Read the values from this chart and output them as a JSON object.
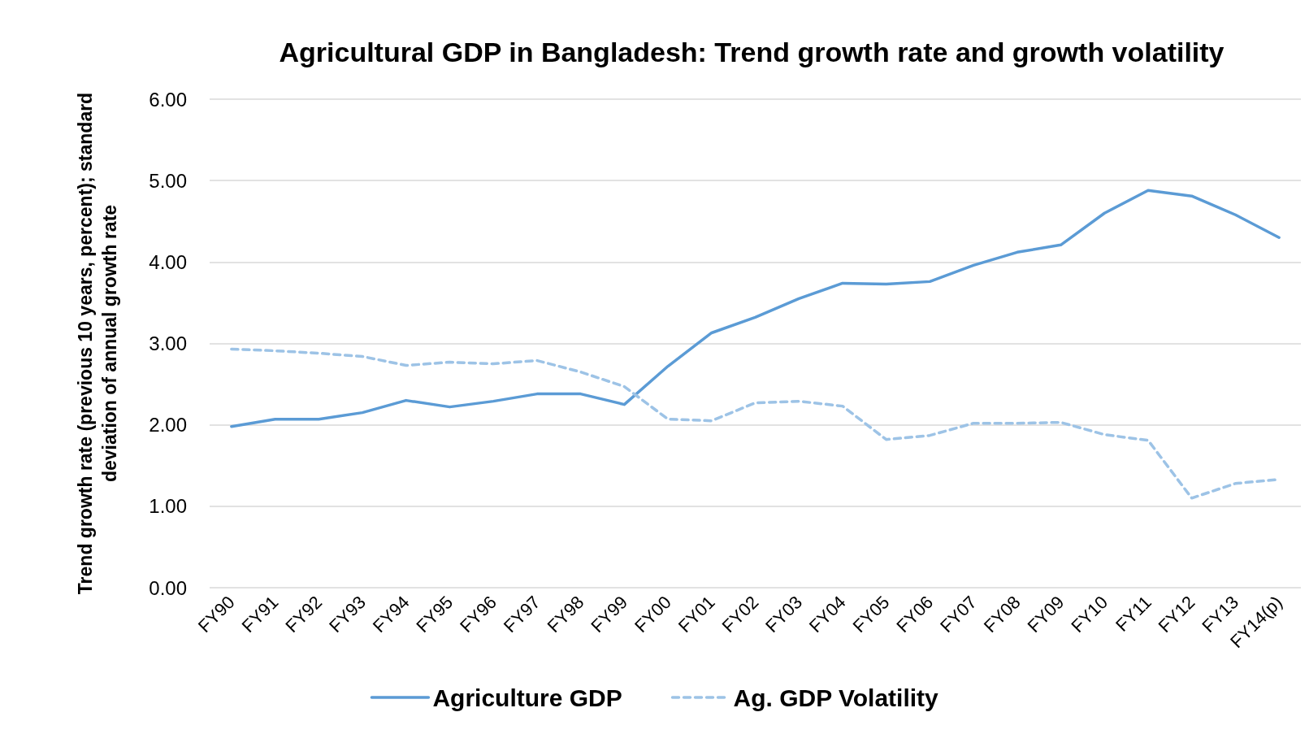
{
  "chart_data": {
    "type": "line",
    "title": "Agricultural GDP in Bangladesh: Trend growth rate and growth volatility",
    "ylabel": "Trend growth rate (previous 10 years, percent); standard deviation of annual growth rate",
    "categories": [
      "FY90",
      "FY91",
      "FY92",
      "FY93",
      "FY94",
      "FY95",
      "FY96",
      "FY97",
      "FY98",
      "FY99",
      "FY00",
      "FY01",
      "FY02",
      "FY03",
      "FY04",
      "FY05",
      "FY06",
      "FY07",
      "FY08",
      "FY09",
      "FY10",
      "FY11",
      "FY12",
      "FY13",
      "FY14(p)"
    ],
    "series": [
      {
        "name": "Agriculture GDP",
        "color": "#5b9bd5",
        "line_style": "solid",
        "values": [
          1.98,
          2.07,
          2.07,
          2.15,
          2.3,
          2.22,
          2.29,
          2.38,
          2.38,
          2.25,
          2.72,
          3.13,
          3.32,
          3.55,
          3.74,
          3.73,
          3.76,
          3.96,
          4.12,
          4.21,
          4.6,
          4.88,
          4.81,
          4.58,
          4.3
        ]
      },
      {
        "name": "Ag. GDP Volatility",
        "color": "#9dc3e6",
        "line_style": "dashed",
        "values": [
          2.93,
          2.91,
          2.88,
          2.84,
          2.73,
          2.77,
          2.75,
          2.79,
          2.65,
          2.47,
          2.07,
          2.05,
          2.27,
          2.29,
          2.23,
          1.82,
          1.87,
          2.02,
          2.02,
          2.03,
          1.88,
          1.81,
          1.1,
          1.28,
          1.33
        ]
      }
    ],
    "ylim": [
      0,
      6
    ],
    "yticks": [
      {
        "value": 0,
        "label": "0.00"
      },
      {
        "value": 1,
        "label": "1.00"
      },
      {
        "value": 2,
        "label": "2.00"
      },
      {
        "value": 3,
        "label": "3.00"
      },
      {
        "value": 4,
        "label": "4.00"
      },
      {
        "value": 5,
        "label": "5.00"
      },
      {
        "value": 6,
        "label": "6.00"
      }
    ],
    "grid": "y",
    "legend": "bottom",
    "marker": "none"
  }
}
